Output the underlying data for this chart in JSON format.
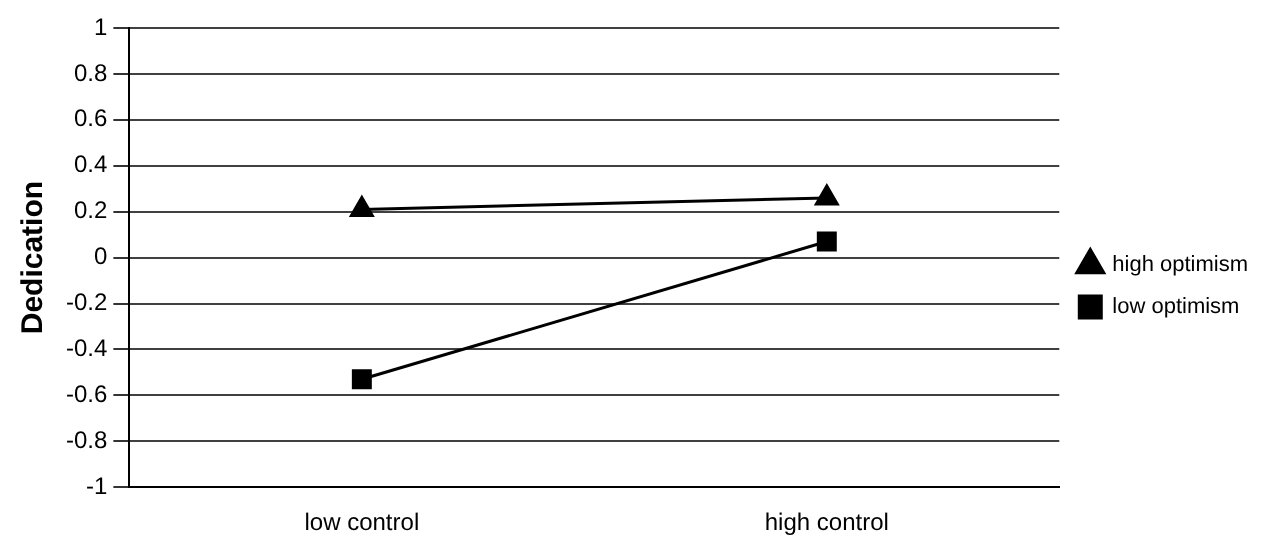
{
  "chart_data": {
    "type": "line",
    "ylabel": "Dedication",
    "categories": [
      "low control",
      "high control"
    ],
    "series": [
      {
        "name": "high optimism",
        "color": "#000000",
        "marker": "triangle",
        "values": [
          0.21,
          0.26
        ]
      },
      {
        "name": "low optimism",
        "color": "#000000",
        "marker": "square",
        "values": [
          -0.53,
          0.07
        ]
      }
    ],
    "ylim": [
      -1,
      1
    ],
    "yticks": [
      -1,
      -0.8,
      -0.6,
      -0.4,
      -0.2,
      0,
      0.2,
      0.4,
      0.6,
      0.8,
      1
    ],
    "grid": "y",
    "legend": "right",
    "line_style": "solid"
  }
}
